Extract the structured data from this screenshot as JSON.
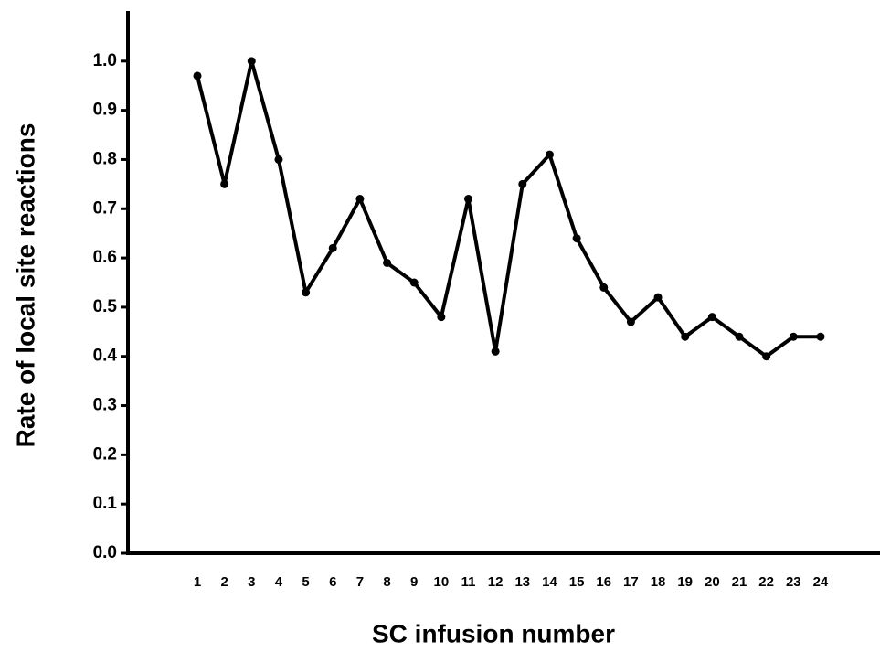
{
  "chart_data": {
    "type": "line",
    "x_label": "SC infusion number",
    "y_label": "Rate of local site reactions",
    "categories": [
      "1",
      "2",
      "3",
      "4",
      "5",
      "6",
      "7",
      "8",
      "9",
      "10",
      "11",
      "12",
      "13",
      "14",
      "15",
      "16",
      "17",
      "18",
      "19",
      "20",
      "21",
      "22",
      "23",
      "24"
    ],
    "values": [
      0.97,
      0.75,
      1.0,
      0.8,
      0.53,
      0.62,
      0.72,
      0.59,
      0.55,
      0.48,
      0.72,
      0.41,
      0.75,
      0.81,
      0.64,
      0.54,
      0.47,
      0.52,
      0.44,
      0.48,
      0.44,
      0.4,
      0.44,
      0.44
    ],
    "color": "#000000",
    "ylim": [
      0,
      1.1
    ],
    "yticks": [
      {
        "value": 0,
        "label": "0.0"
      },
      0.1,
      0.2,
      0.3,
      0.4,
      0.5,
      0.6,
      0.7,
      0.8,
      0.9,
      {
        "value": 1,
        "label": "1.0"
      }
    ]
  }
}
